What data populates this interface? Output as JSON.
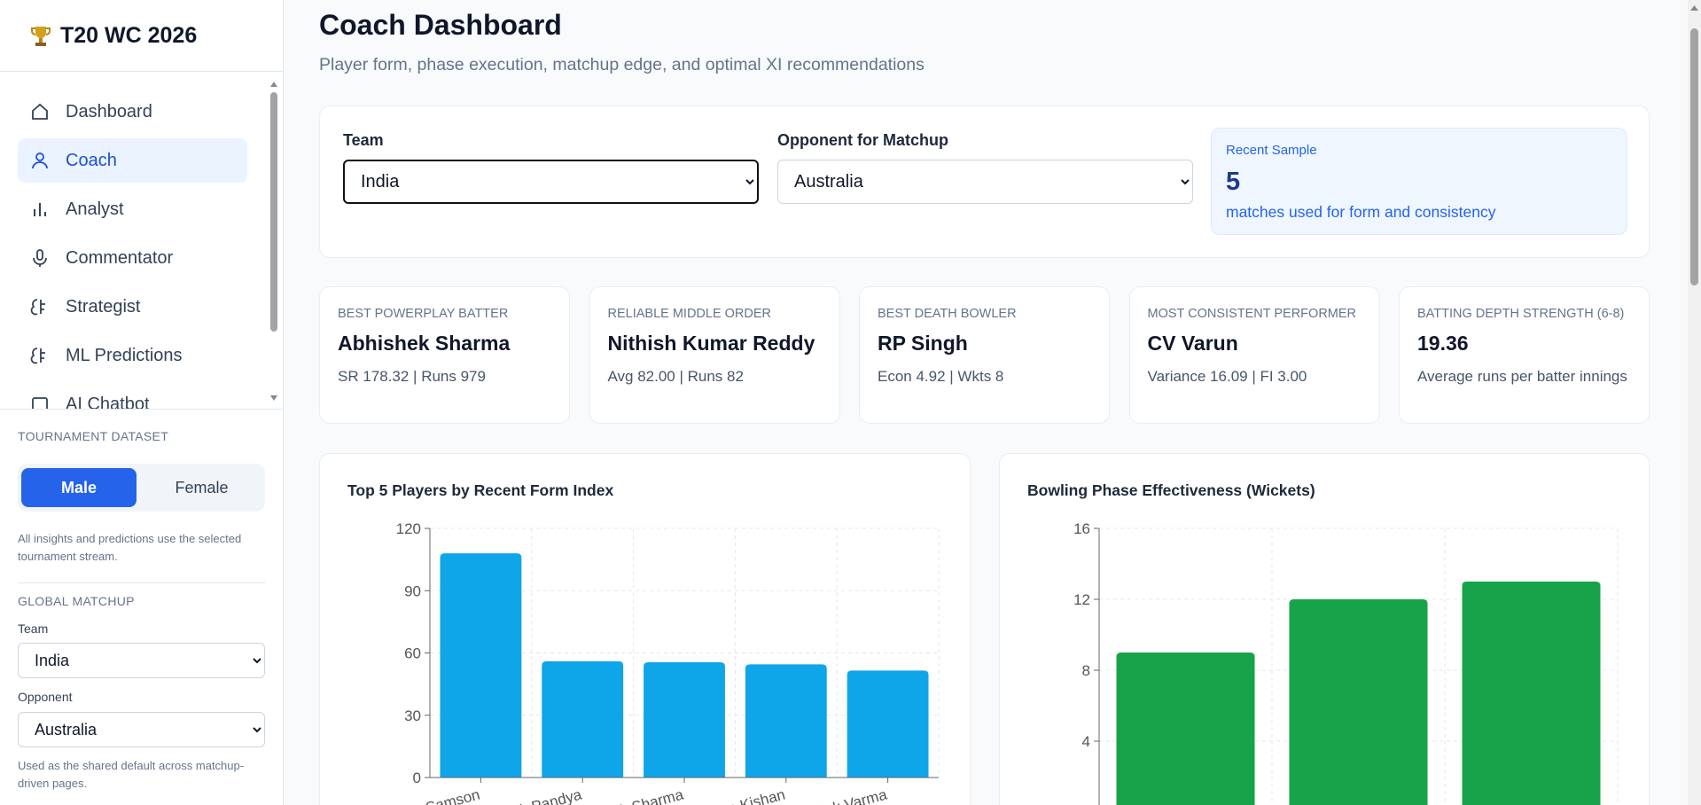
{
  "sidebar": {
    "brand": "T20 WC 2026",
    "nav": [
      "Dashboard",
      "Coach",
      "Analyst",
      "Commentator",
      "Strategist",
      "ML Predictions",
      "AI Chatbot"
    ],
    "dataset": {
      "heading": "TOURNAMENT DATASET",
      "options": [
        "Male",
        "Female"
      ],
      "note": "All insights and predictions use the selected tournament stream."
    },
    "matchup": {
      "heading": "GLOBAL MATCHUP",
      "team_label": "Team",
      "team": "India",
      "opponent_label": "Opponent",
      "opponent": "Australia",
      "note": "Used as the shared default across matchup-driven pages."
    }
  },
  "header": {
    "title": "Coach Dashboard",
    "subtitle": "Player form, phase execution, matchup edge, and optimal XI recommendations"
  },
  "filters": {
    "team_label": "Team",
    "team": "India",
    "opponent_label": "Opponent for Matchup",
    "opponent": "Australia",
    "sample": {
      "label": "Recent Sample",
      "value": 5,
      "caption": "matches used for form and consistency"
    }
  },
  "kpis": [
    {
      "label": "BEST POWERPLAY BATTER",
      "name": "Abhishek Sharma",
      "detail": "SR 178.32 | Runs 979"
    },
    {
      "label": "RELIABLE MIDDLE ORDER",
      "name": "Nithish Kumar Reddy",
      "detail": "Avg 82.00 | Runs 82"
    },
    {
      "label": "BEST DEATH BOWLER",
      "name": "RP Singh",
      "detail": "Econ 4.92 | Wkts 8"
    },
    {
      "label": "MOST CONSISTENT PERFORMER",
      "name": "CV Varun",
      "detail": "Variance 16.09 | FI 3.00"
    },
    {
      "label": "BATTING DEPTH STRENGTH (6-8)",
      "name": "19.36",
      "detail": "Average runs per batter innings"
    }
  ],
  "chart_data": [
    {
      "type": "bar",
      "title": "Top 5 Players by Recent Form Index",
      "categories": [
        "Sanju Samson",
        "Hardik Pandya",
        "Abhishek Sharma",
        "Ishan Kishan",
        "Tilak Varma"
      ],
      "values": [
        108,
        56,
        55.5,
        54.5,
        51.5
      ],
      "color": "#0ea5e9",
      "ylim": [
        0,
        120
      ],
      "yticks": [
        0,
        30,
        60,
        90,
        120
      ],
      "grid": true
    },
    {
      "type": "bar",
      "title": "Bowling Phase Effectiveness (Wickets)",
      "categories": [
        null,
        null,
        null
      ],
      "values": [
        9,
        12,
        13
      ],
      "color": "#16a34a",
      "ylim": [
        0,
        16
      ],
      "yticks": [
        4,
        8,
        12,
        16
      ],
      "grid": true
    }
  ]
}
